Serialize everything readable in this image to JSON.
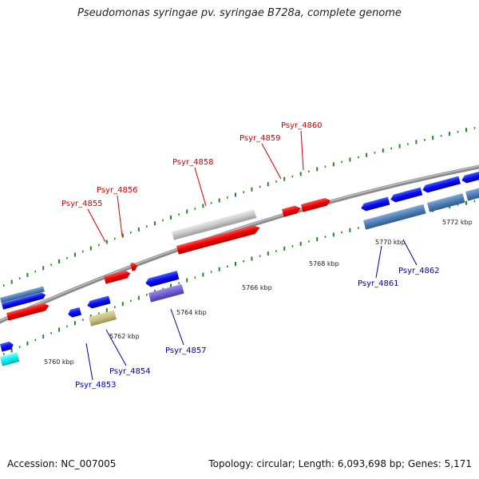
{
  "title": "Pseudomonas syringae pv. syringae B728a, complete genome",
  "footer": {
    "accession": "Accession: NC_007005",
    "summary": "Topology: circular; Length: 6,093,698 bp; Genes: 5,171"
  },
  "colors": {
    "backbone": "#8a8a8a",
    "forward_gene": "#ff0000",
    "reverse_gene": "#0000ee",
    "forward_label": "#cc0000",
    "reverse_label": "#0000aa",
    "tick_green": "#228822",
    "blue_gene": "#0a0af0",
    "steelblue_gene": "#4f7fb8",
    "red_gene": "#f01010",
    "gray_gene": "#c8c8c8",
    "olive_gene": "#c8bf80",
    "cyan_gene": "#00f0f0",
    "purple_gene": "#7060d0"
  },
  "scale_ticks": [
    "5760 kbp",
    "5762 kbp",
    "5764 kbp",
    "5766 kbp",
    "5768 kbp",
    "5770 kbp",
    "5772 kbp"
  ],
  "gene_labels": {
    "forward": [
      "Psyr_4855",
      "Psyr_4856",
      "Psyr_4858",
      "Psyr_4859",
      "Psyr_4860"
    ],
    "reverse": [
      "Psyr_4853",
      "Psyr_4854",
      "Psyr_4857",
      "Psyr_4861",
      "Psyr_4862"
    ]
  }
}
